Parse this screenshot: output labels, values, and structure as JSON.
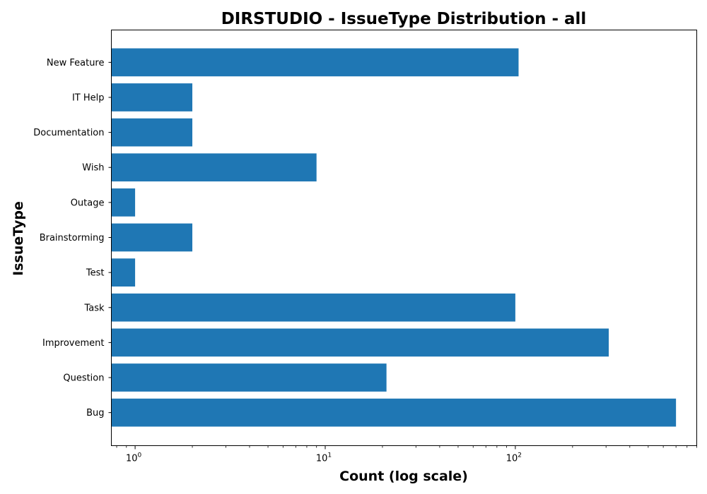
{
  "chart_data": {
    "type": "bar",
    "orientation": "horizontal",
    "title": "DIRSTUDIO - IssueType Distribution - all",
    "xlabel": "Count (log scale)",
    "ylabel": "IssueType",
    "xscale": "log",
    "xlim": [
      0.75,
      900
    ],
    "x_ticks": [
      {
        "value": 1,
        "base": "10",
        "exp": "0"
      },
      {
        "value": 10,
        "base": "10",
        "exp": "1"
      },
      {
        "value": 100,
        "base": "10",
        "exp": "2"
      }
    ],
    "categories": [
      "New Feature",
      "IT Help",
      "Documentation",
      "Wish",
      "Outage",
      "Brainstorming",
      "Test",
      "Task",
      "Improvement",
      "Question",
      "Bug"
    ],
    "values": [
      104,
      2,
      2,
      9,
      1,
      2,
      1,
      100,
      310,
      21,
      700
    ],
    "bar_color": "#1f77b4",
    "grid": false,
    "legend": "none"
  }
}
